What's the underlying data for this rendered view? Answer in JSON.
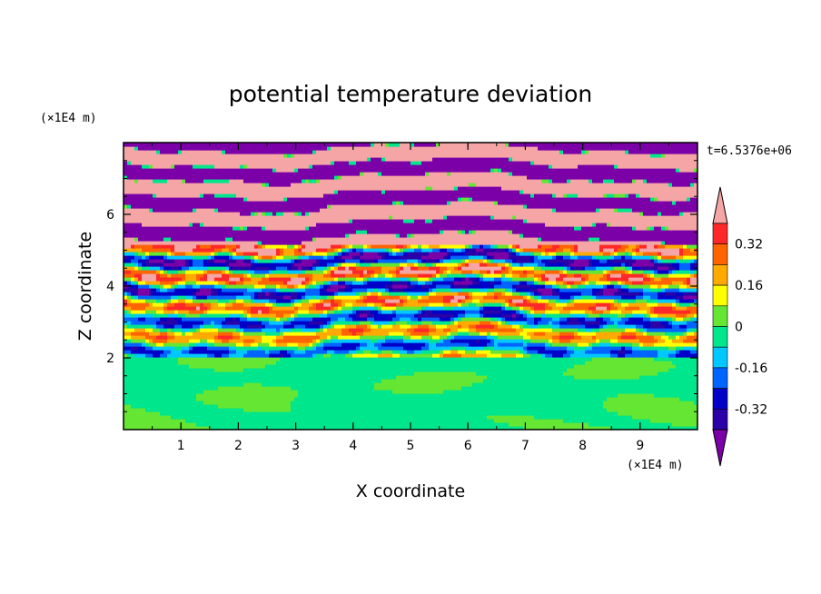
{
  "chart_data": {
    "type": "heatmap",
    "title": "potential temperature deviation",
    "xlabel": "X coordinate",
    "ylabel": "Z coordinate",
    "x_unit": "(×1E4 m)",
    "y_unit": "(×1E4 m)",
    "time_label": "t=6.5376e+06",
    "xlim": [
      0,
      10
    ],
    "ylim": [
      0,
      8
    ],
    "x_ticks": [
      "1",
      "2",
      "3",
      "4",
      "5",
      "6",
      "7",
      "8",
      "9"
    ],
    "y_ticks": [
      "2",
      "4",
      "6"
    ],
    "colorbar": {
      "levels": [
        -0.4,
        -0.32,
        -0.24,
        -0.16,
        -0.08,
        0,
        0.08,
        0.16,
        0.24,
        0.32,
        0.4
      ],
      "tick_labels": [
        "0.32",
        "0.16",
        "0",
        "-0.16",
        "-0.32"
      ],
      "colors": [
        "#7b00a8",
        "#2a00a8",
        "#0000c8",
        "#0064ff",
        "#00c8ff",
        "#00e68c",
        "#64e632",
        "#ffff00",
        "#ffaa00",
        "#ff6400",
        "#ff2828",
        "#f5a5a5"
      ]
    },
    "description_layers": {
      "lower_region_z_max": 2,
      "lower_region_values": [
        0,
        0.04
      ],
      "upper_region_band_values": [
        -0.4,
        0.4
      ]
    }
  }
}
